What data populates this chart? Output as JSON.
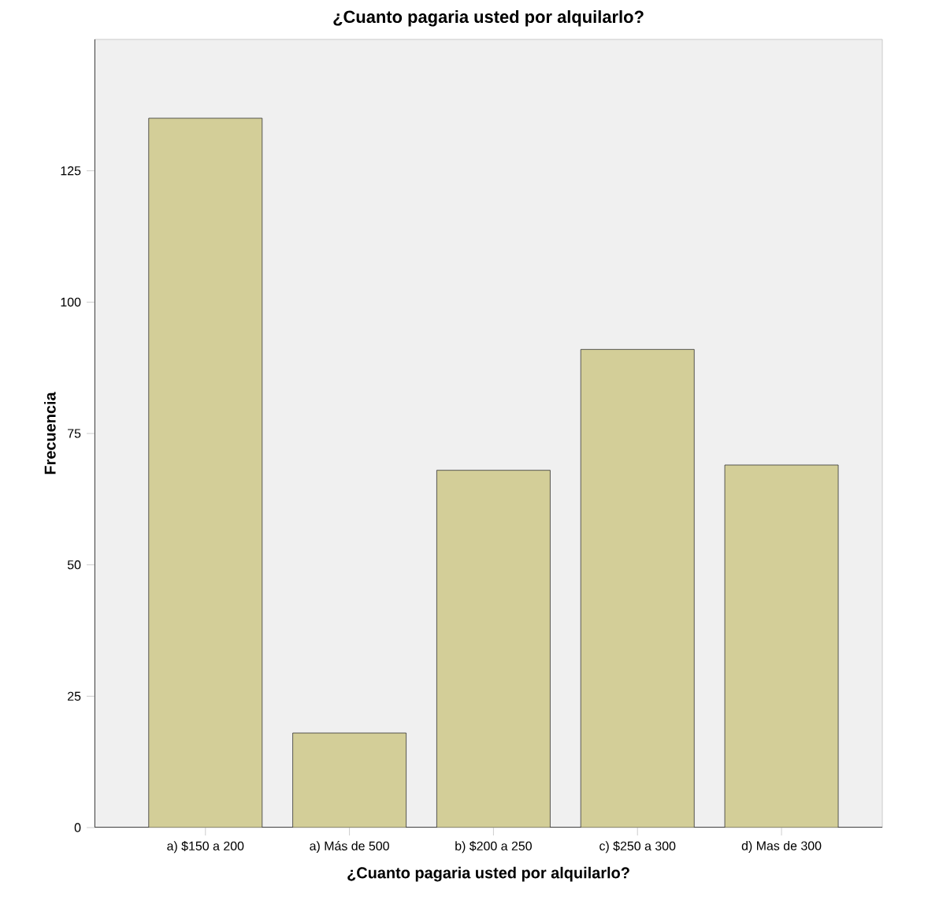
{
  "chart_data": {
    "type": "bar",
    "title": "¿Cuanto pagaria usted por alquilarlo?",
    "xlabel": "¿Cuanto pagaria usted por alquilarlo?",
    "ylabel": "Frecuencia",
    "categories": [
      "a) $150 a 200",
      "a) Más de 500",
      "b) $200 a 250",
      "c) $250 a 300",
      "d) Mas de 300"
    ],
    "values": [
      135,
      18,
      68,
      91,
      69
    ],
    "color": "#d3ce98",
    "ylim": [
      0,
      150
    ],
    "yticks": [
      0,
      25,
      50,
      75,
      100,
      125
    ],
    "grid": false
  }
}
